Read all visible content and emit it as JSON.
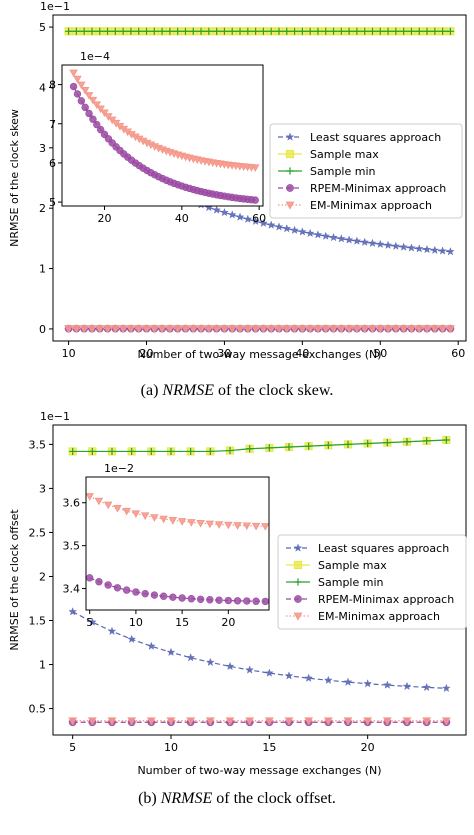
{
  "figure_name": "nrmse-comparison-figure",
  "captions": [
    {
      "label": "(a)",
      "emph": "NRMSE",
      "rest": "of the clock skew."
    },
    {
      "label": "(b)",
      "emph": "NRMSE",
      "rest": "of the clock offset."
    }
  ],
  "cut_off_text": "",
  "chart_data": [
    {
      "type": "line",
      "xlabel": "Number of two-way message exchanges (N)",
      "ylabel": "NRMSE of the clock skew",
      "scale_text": "1e−1",
      "xlim": [
        8,
        61
      ],
      "ylim": [
        -0.2,
        5.2
      ],
      "xticks": [
        10,
        20,
        30,
        40,
        50,
        60
      ],
      "yticks": [
        0,
        1,
        2,
        3,
        4,
        5
      ],
      "grid": false,
      "legend_position": "center-right",
      "series": [
        {
          "name": "Least squares approach",
          "color": "#5a67b5",
          "style": "dashed",
          "marker": "star",
          "x_start": 10,
          "x_step": 1,
          "count": 50,
          "shape": "decay",
          "y_start": 3.2,
          "y_end": 1.28,
          "k": 0.72
        },
        {
          "name": "Sample max",
          "color": "#e8e84a",
          "style": "solid",
          "marker": "square",
          "x_start": 10,
          "x_step": 1,
          "count": 50,
          "shape": "flat",
          "y_start": 4.93
        },
        {
          "name": "Sample min",
          "color": "#2ca02c",
          "style": "solid",
          "marker": "plus",
          "x_start": 10,
          "x_step": 1,
          "count": 50,
          "shape": "flat",
          "y_start": 4.93
        },
        {
          "name": "RPEM-Minimax approach",
          "color": "#9b4aa3",
          "style": "dashed",
          "marker": "circle",
          "x_start": 10,
          "x_step": 1,
          "count": 50,
          "shape": "flat",
          "y_start": 0.005
        },
        {
          "name": "EM-Minimax approach",
          "color": "#f4988a",
          "style": "dotted",
          "marker": "triangle",
          "x_start": 10,
          "x_step": 1,
          "count": 50,
          "shape": "flat",
          "y_start": 0.006
        }
      ],
      "inset": {
        "scale_text": "1e−4",
        "xlim": [
          9,
          61
        ],
        "ylim": [
          4.9,
          8.5
        ],
        "xticks": [
          20,
          40,
          60
        ],
        "yticks": [
          5,
          6,
          7,
          8
        ],
        "series": [
          {
            "name": "RPEM-Minimax approach",
            "color": "#9b4aa3",
            "style": "dashed",
            "marker": "circle",
            "x_start": 12,
            "x_step": 1,
            "count": 48,
            "shape": "decay",
            "y_start": 7.95,
            "y_end": 5.05,
            "k": 1.0
          },
          {
            "name": "EM-Minimax approach",
            "color": "#f4988a",
            "style": "dotted",
            "marker": "triangle",
            "x_start": 12,
            "x_step": 1,
            "count": 48,
            "shape": "decay",
            "y_start": 8.3,
            "y_end": 5.88,
            "k": 1.0
          }
        ]
      }
    },
    {
      "type": "line",
      "xlabel": "Number of two-way message exchanges (N)",
      "ylabel": "NRMSE of the clock offset",
      "scale_text": "1e−1",
      "xlim": [
        4.0,
        25.0
      ],
      "ylim": [
        0.2,
        3.72
      ],
      "xticks": [
        5,
        10,
        15,
        20
      ],
      "yticks": [
        0.5,
        1.0,
        1.5,
        2.0,
        2.5,
        3.0,
        3.5
      ],
      "grid": false,
      "legend_position": "center-right",
      "series": [
        {
          "name": "Least squares approach",
          "color": "#5a67b5",
          "style": "dashed",
          "marker": "star",
          "x_start": 5,
          "x_step": 1,
          "count": 20,
          "shape": "decay",
          "y_start": 1.6,
          "y_end": 0.73,
          "k": 0.85
        },
        {
          "name": "Sample max",
          "color": "#e8e84a",
          "style": "solid",
          "marker": "square",
          "x_start": 5,
          "x_step": 1,
          "count": 20,
          "shape": "points",
          "values": [
            3.42,
            3.42,
            3.42,
            3.42,
            3.42,
            3.42,
            3.42,
            3.42,
            3.43,
            3.45,
            3.46,
            3.47,
            3.48,
            3.49,
            3.5,
            3.51,
            3.52,
            3.53,
            3.54,
            3.55
          ]
        },
        {
          "name": "Sample min",
          "color": "#2ca02c",
          "style": "solid",
          "marker": "plus",
          "x_start": 5,
          "x_step": 1,
          "count": 20,
          "shape": "points",
          "values": [
            3.42,
            3.42,
            3.42,
            3.42,
            3.42,
            3.42,
            3.42,
            3.42,
            3.43,
            3.45,
            3.46,
            3.47,
            3.48,
            3.49,
            3.5,
            3.51,
            3.52,
            3.53,
            3.54,
            3.55
          ]
        },
        {
          "name": "RPEM-Minimax approach",
          "color": "#9b4aa3",
          "style": "dashed",
          "marker": "circle",
          "x_start": 5,
          "x_step": 1,
          "count": 20,
          "shape": "flat",
          "y_start": 0.345
        },
        {
          "name": "EM-Minimax approach",
          "color": "#f4988a",
          "style": "dotted",
          "marker": "triangle",
          "x_start": 5,
          "x_step": 1,
          "count": 20,
          "shape": "flat",
          "y_start": 0.362
        }
      ],
      "inset": {
        "scale_text": "1e−2",
        "xlim": [
          4.6,
          24.4
        ],
        "ylim": [
          3.35,
          3.66
        ],
        "xticks": [
          5,
          10,
          15,
          20
        ],
        "yticks": [
          3.4,
          3.5,
          3.6
        ],
        "series": [
          {
            "name": "RPEM-Minimax approach",
            "color": "#9b4aa3",
            "style": "dashed",
            "marker": "circle",
            "x_start": 5,
            "x_step": 1,
            "count": 20,
            "shape": "decay",
            "y_start": 3.425,
            "y_end": 3.37,
            "k": 1.1
          },
          {
            "name": "EM-Minimax approach",
            "color": "#f4988a",
            "style": "dotted",
            "marker": "triangle",
            "x_start": 5,
            "x_step": 1,
            "count": 20,
            "shape": "decay",
            "y_start": 3.615,
            "y_end": 3.545,
            "k": 1.0
          }
        ]
      }
    }
  ]
}
